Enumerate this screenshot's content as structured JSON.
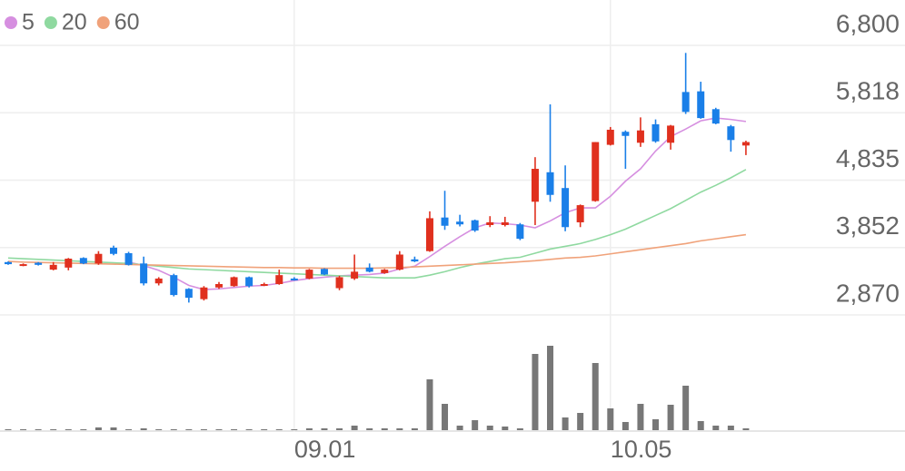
{
  "chart_data": [
    {
      "type": "candlestick",
      "categories": [
        null,
        null,
        null,
        null,
        null,
        null,
        null,
        null,
        null,
        null,
        null,
        null,
        null,
        null,
        null,
        null,
        null,
        null,
        null,
        "09.01",
        null,
        null,
        null,
        null,
        null,
        null,
        null,
        null,
        null,
        null,
        null,
        null,
        null,
        null,
        null,
        null,
        null,
        null,
        null,
        null,
        "10.05",
        null,
        null,
        null,
        null,
        null,
        null,
        null,
        null,
        null
      ],
      "open": [
        3640,
        3590,
        3630,
        3530,
        3560,
        3700,
        3620,
        3850,
        3770,
        3620,
        3330,
        3450,
        3250,
        3100,
        3270,
        3290,
        3420,
        3300,
        3320,
        3400,
        3400,
        3540,
        3260,
        3400,
        3560,
        3480,
        3530,
        3680,
        3800,
        4290,
        4230,
        4250,
        4180,
        4180,
        4190,
        4520,
        4950,
        4720,
        4220,
        4530,
        5350,
        5540,
        5380,
        5650,
        5380,
        6120,
        6130,
        5870,
        5620,
        5340
      ],
      "high": [
        3650,
        3620,
        3640,
        3640,
        3700,
        3710,
        3800,
        3880,
        3790,
        3720,
        3420,
        3470,
        3260,
        3290,
        3350,
        3430,
        3430,
        3340,
        3530,
        3420,
        3540,
        3550,
        3440,
        3750,
        3620,
        3540,
        3800,
        3720,
        4380,
        4680,
        4330,
        4260,
        4310,
        4300,
        4210,
        5170,
        5940,
        5050,
        4480,
        5390,
        5610,
        5560,
        5750,
        5720,
        5640,
        6690,
        6270,
        5890,
        5640,
        5410
      ],
      "low": [
        3600,
        3580,
        3590,
        3520,
        3520,
        3610,
        3600,
        3740,
        3590,
        3300,
        3300,
        3140,
        3050,
        3080,
        3250,
        3280,
        3270,
        3290,
        3310,
        3370,
        3390,
        3450,
        3230,
        3380,
        3490,
        3470,
        3520,
        3640,
        3790,
        4110,
        4160,
        4080,
        4150,
        4160,
        3960,
        4180,
        4520,
        4090,
        4150,
        4520,
        5340,
        5000,
        5320,
        5380,
        5280,
        5800,
        5730,
        5650,
        5250,
        5200
      ],
      "close": [
        3610,
        3610,
        3600,
        3600,
        3690,
        3620,
        3760,
        3760,
        3600,
        3330,
        3400,
        3160,
        3120,
        3270,
        3320,
        3420,
        3290,
        3320,
        3450,
        3380,
        3530,
        3460,
        3420,
        3500,
        3500,
        3530,
        3750,
        3650,
        4280,
        4170,
        4190,
        4100,
        4220,
        4220,
        3980,
        5000,
        4620,
        4150,
        4470,
        5390,
        5570,
        5480,
        5560,
        5400,
        5630,
        5830,
        5740,
        5660,
        5420,
        5390
      ],
      "up_color": "#e0301e",
      "down_color": "#1a7fe8",
      "series": [
        {
          "name": "5",
          "color": "#d68fe0",
          "values": [
            null,
            null,
            null,
            null,
            null,
            null,
            null,
            null,
            3640,
            3590,
            3520,
            3420,
            3300,
            3240,
            3250,
            3270,
            3290,
            3300,
            3330,
            3370,
            3400,
            3420,
            3440,
            3450,
            3460,
            3480,
            3540,
            3580,
            3720,
            3870,
            4010,
            4140,
            4210,
            4200,
            4180,
            4140,
            4240,
            4360,
            4430,
            4430,
            4600,
            4820,
            5000,
            5260,
            5470,
            5580,
            5700,
            5740,
            5720,
            5690
          ]
        },
        {
          "name": "20",
          "color": "#8fd9a0",
          "values": [
            3700,
            3690,
            3680,
            3670,
            3660,
            3650,
            3640,
            3630,
            3620,
            3600,
            3580,
            3560,
            3540,
            3530,
            3520,
            3510,
            3500,
            3490,
            3480,
            3470,
            3460,
            3450,
            3440,
            3430,
            3420,
            3410,
            3410,
            3410,
            3450,
            3500,
            3560,
            3610,
            3650,
            3690,
            3710,
            3770,
            3830,
            3870,
            3910,
            3970,
            4040,
            4120,
            4220,
            4320,
            4420,
            4540,
            4660,
            4760,
            4870,
            4990
          ]
        },
        {
          "name": "60",
          "color": "#f0a27a",
          "values": [
            3650,
            3640,
            3635,
            3630,
            3625,
            3620,
            3615,
            3610,
            3605,
            3600,
            3595,
            3590,
            3585,
            3580,
            3575,
            3570,
            3565,
            3560,
            3560,
            3555,
            3555,
            3550,
            3550,
            3550,
            3550,
            3555,
            3560,
            3570,
            3580,
            3590,
            3600,
            3610,
            3620,
            3630,
            3645,
            3660,
            3680,
            3700,
            3710,
            3730,
            3760,
            3790,
            3820,
            3850,
            3880,
            3910,
            3950,
            3980,
            4010,
            4040
          ]
        }
      ],
      "ylim": [
        2870,
        6800
      ],
      "yticks": [
        {
          "value": 6800,
          "label": "6,800"
        },
        {
          "value": 5818,
          "label": "5,818"
        },
        {
          "value": 4835,
          "label": "4,835"
        },
        {
          "value": 3852,
          "label": "3,852"
        },
        {
          "value": 2870,
          "label": "2,870"
        }
      ],
      "grid": true
    },
    {
      "type": "bar",
      "color": "#777777",
      "ylim": [
        0,
        100
      ],
      "values": [
        1,
        1,
        1,
        1,
        1,
        1,
        3,
        3,
        1,
        2,
        1,
        1,
        1,
        1,
        1,
        1,
        1,
        1,
        1,
        1,
        2,
        2,
        2,
        5,
        2,
        2,
        2,
        2,
        56,
        29,
        5,
        11,
        5,
        4,
        2,
        84,
        93,
        14,
        19,
        74,
        24,
        9,
        29,
        12,
        28,
        49,
        10,
        5,
        5,
        2
      ]
    }
  ]
}
